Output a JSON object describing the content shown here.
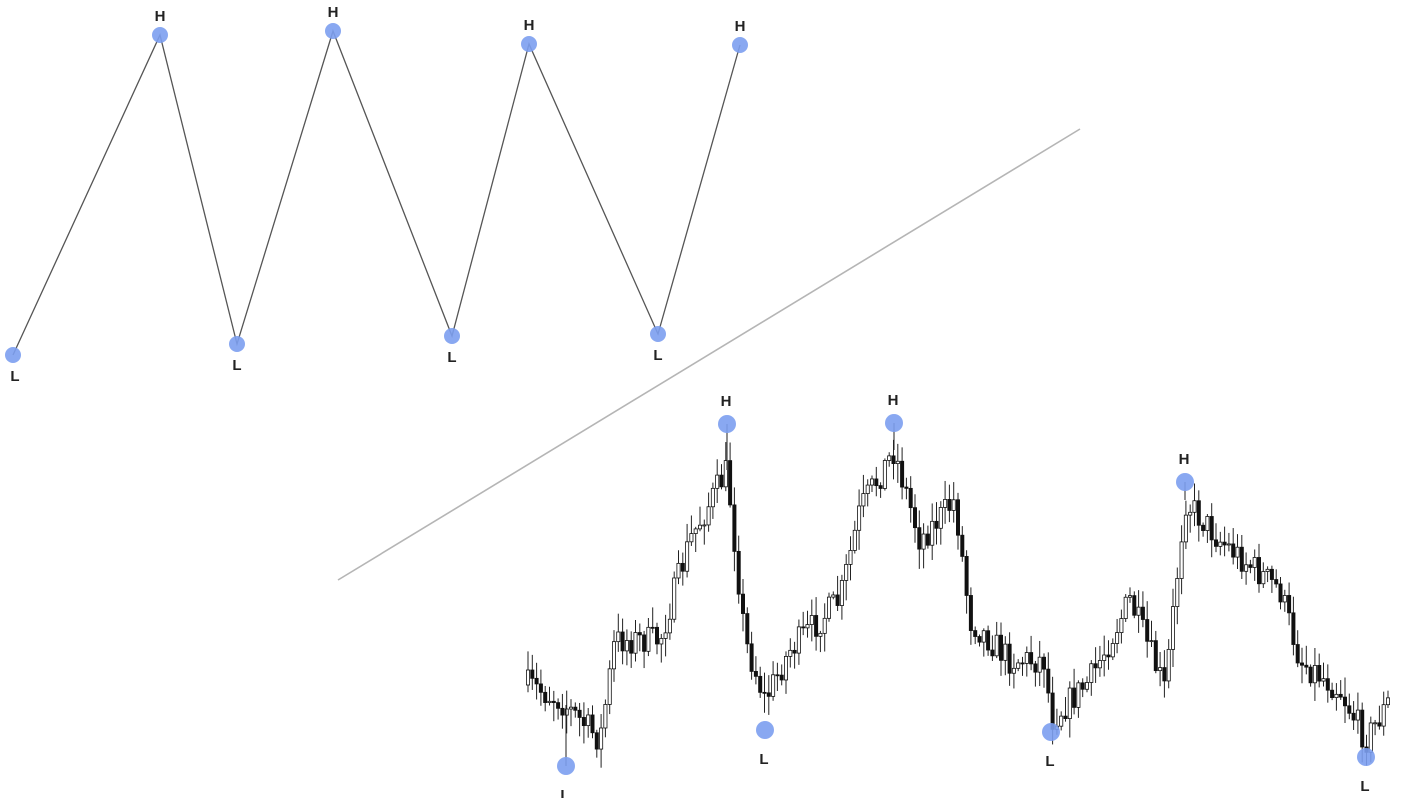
{
  "zigzag": {
    "points": [
      {
        "label": "L"
      },
      {
        "label": "H"
      },
      {
        "label": "L"
      },
      {
        "label": "H"
      },
      {
        "label": "L"
      },
      {
        "label": "H"
      },
      {
        "label": "L"
      },
      {
        "label": "H"
      }
    ]
  },
  "candles": {
    "pivots": [
      {
        "label": "L"
      },
      {
        "label": "H"
      },
      {
        "label": "L"
      },
      {
        "label": "H"
      },
      {
        "label": "L"
      },
      {
        "label": "H"
      },
      {
        "label": "L"
      }
    ]
  }
}
